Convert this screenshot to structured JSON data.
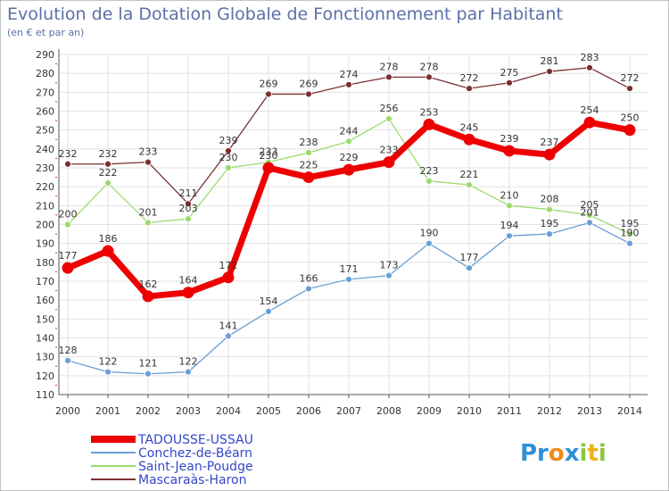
{
  "chart_data": {
    "type": "line",
    "title": "Evolution de la Dotation Globale de Fonctionnement par Habitant",
    "subtitle": "(en € et par an)",
    "xlabel": "",
    "ylabel": "",
    "ylim": [
      110,
      290
    ],
    "ytick_step": 10,
    "x": [
      "2000",
      "2001",
      "2002",
      "2003",
      "2004",
      "2005",
      "2006",
      "2007",
      "2008",
      "2009",
      "2010",
      "2011",
      "2012",
      "2013",
      "2014"
    ],
    "series": [
      {
        "name": "Mascaraàs-Haron",
        "color": "#7a3030",
        "values": [
          232,
          232,
          233,
          211,
          239,
          269,
          269,
          274,
          278,
          278,
          272,
          275,
          281,
          283,
          272
        ],
        "highlight": false
      },
      {
        "name": "Saint-Jean-Poudge",
        "color": "#9adb6e",
        "values": [
          200,
          222,
          201,
          203,
          230,
          233,
          238,
          244,
          256,
          223,
          221,
          210,
          208,
          205,
          195
        ],
        "highlight": false
      },
      {
        "name": "Conchez-de-Béarn",
        "color": "#6a9ed6",
        "values": [
          128,
          122,
          121,
          122,
          141,
          154,
          166,
          171,
          173,
          190,
          177,
          194,
          195,
          201,
          190
        ],
        "highlight": false
      },
      {
        "name": "TADOUSSE-USSAU",
        "color": "#ee0000",
        "values": [
          177,
          186,
          162,
          164,
          172,
          230,
          225,
          229,
          233,
          253,
          245,
          239,
          237,
          254,
          250
        ],
        "highlight": true
      }
    ],
    "legend": [
      "TADOUSSE-USSAU",
      "Conchez-de-Béarn",
      "Saint-Jean-Poudge",
      "Mascaraàs-Haron"
    ],
    "legend_position": "bottom-left",
    "grid": true
  },
  "logo": {
    "text": "Proxiti"
  }
}
